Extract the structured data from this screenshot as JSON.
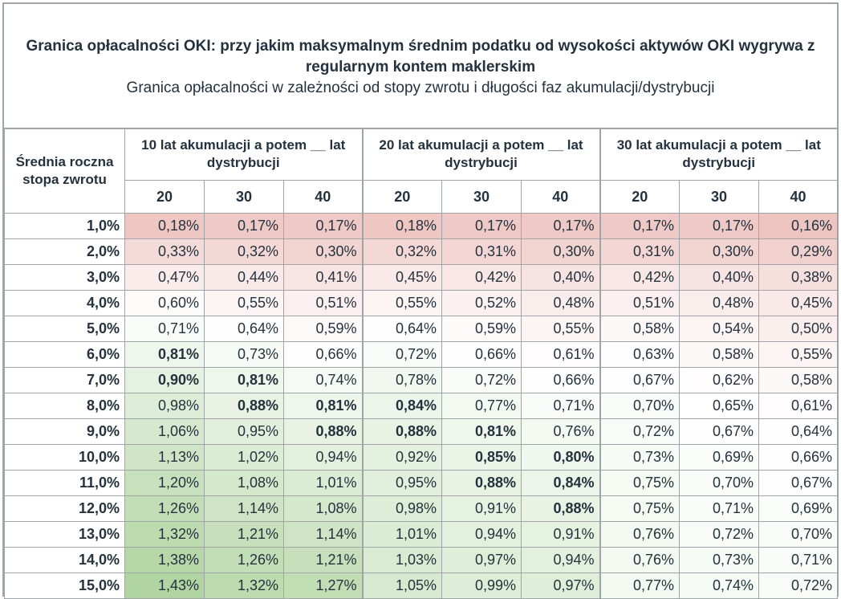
{
  "title": "Granica opłacalności OKI: przy jakim maksymalnym średnim podatku od wysokości aktywów OKI wygrywa z regularnym kontem maklerskim",
  "subtitle": "Granica opłacalności w zależności od stopy zwrotu i długości faz akumulacji/dystrybucji",
  "header": {
    "rate_label": "Średnia roczna stopa zwrotu",
    "groups": [
      "10 lat akumulacji a potem __ lat dystrybucji",
      "20 lat akumulacji a potem __ lat dystrybucji",
      "30 lat akumulacji a potem __ lat dystrybucji"
    ],
    "sub": [
      "20",
      "30",
      "40",
      "20",
      "30",
      "40",
      "20",
      "30",
      "40"
    ]
  },
  "rows": [
    {
      "rate": "1,0%",
      "cells": [
        "0,18%",
        "0,17%",
        "0,17%",
        "0,18%",
        "0,17%",
        "0,17%",
        "0,17%",
        "0,17%",
        "0,16%"
      ],
      "colors": [
        "#eec7c3",
        "#efc9c5",
        "#efc9c5",
        "#eec7c3",
        "#efc9c5",
        "#efc9c5",
        "#efc9c5",
        "#efc9c5",
        "#edc4c0"
      ],
      "bold": []
    },
    {
      "rate": "2,0%",
      "cells": [
        "0,33%",
        "0,32%",
        "0,30%",
        "0,32%",
        "0,31%",
        "0,30%",
        "0,31%",
        "0,30%",
        "0,29%"
      ],
      "colors": [
        "#f4dad8",
        "#f3d8d5",
        "#f2d4d1",
        "#f3d8d5",
        "#f3d6d3",
        "#f2d4d1",
        "#f3d6d3",
        "#f2d4d1",
        "#f1d1ce"
      ],
      "bold": []
    },
    {
      "rate": "3,0%",
      "cells": [
        "0,47%",
        "0,44%",
        "0,41%",
        "0,45%",
        "0,42%",
        "0,40%",
        "0,42%",
        "0,40%",
        "0,38%"
      ],
      "colors": [
        "#faeceb",
        "#f9e9e8",
        "#f8e5e3",
        "#f9eae9",
        "#f8e7e5",
        "#f7e3e2",
        "#f8e7e5",
        "#f7e3e2",
        "#f6e0de"
      ],
      "bold": []
    },
    {
      "rate": "4,0%",
      "cells": [
        "0,60%",
        "0,55%",
        "0,51%",
        "0,55%",
        "0,52%",
        "0,48%",
        "0,51%",
        "0,48%",
        "0,45%"
      ],
      "colors": [
        "#fefbfb",
        "#fcf5f4",
        "#fbf0ef",
        "#fcf5f4",
        "#fbf1f0",
        "#faeeed",
        "#fbf0ef",
        "#faeeed",
        "#f9eae9"
      ],
      "bold": []
    },
    {
      "rate": "5,0%",
      "cells": [
        "0,71%",
        "0,64%",
        "0,59%",
        "0,64%",
        "0,59%",
        "0,55%",
        "0,58%",
        "0,54%",
        "0,50%"
      ],
      "colors": [
        "#f9fcf8",
        "#fefefe",
        "#fefafa",
        "#fefefe",
        "#fefafa",
        "#fcf5f4",
        "#fdf8f8",
        "#fcf3f3",
        "#fbefee"
      ],
      "bold": []
    },
    {
      "rate": "6,0%",
      "cells": [
        "0,81%",
        "0,73%",
        "0,66%",
        "0,72%",
        "0,66%",
        "0,61%",
        "0,63%",
        "0,58%",
        "0,55%"
      ],
      "colors": [
        "#eff7ec",
        "#f7fbf6",
        "#fdfefd",
        "#f8fbf7",
        "#fdfefd",
        "#fefcfc",
        "#fffefe",
        "#fdf8f8",
        "#fcf5f4"
      ],
      "bold": [
        0
      ]
    },
    {
      "rate": "7,0%",
      "cells": [
        "0,90%",
        "0,81%",
        "0,74%",
        "0,78%",
        "0,72%",
        "0,66%",
        "0,67%",
        "0,62%",
        "0,58%"
      ],
      "colors": [
        "#e6f2e1",
        "#eff7ec",
        "#f6faf5",
        "#f2f8f0",
        "#f8fbf7",
        "#fdfefd",
        "#fcfdfc",
        "#fffdfd",
        "#fdf8f8"
      ],
      "bold": [
        0,
        1
      ]
    },
    {
      "rate": "8,0%",
      "cells": [
        "0,98%",
        "0,88%",
        "0,81%",
        "0,84%",
        "0,77%",
        "0,71%",
        "0,70%",
        "0,65%",
        "0,61%"
      ],
      "colors": [
        "#deedd8",
        "#e8f3e4",
        "#eff7ec",
        "#ecf5e9",
        "#f3f9f1",
        "#f9fcf8",
        "#fafcf9",
        "#fefffe",
        "#fefcfc"
      ],
      "bold": [
        1,
        2,
        3
      ]
    },
    {
      "rate": "9,0%",
      "cells": [
        "1,06%",
        "0,95%",
        "0,88%",
        "0,88%",
        "0,81%",
        "0,76%",
        "0,72%",
        "0,67%",
        "0,64%"
      ],
      "colors": [
        "#d6e9ce",
        "#e1efdc",
        "#e8f3e4",
        "#e8f3e4",
        "#eff7ec",
        "#f4f9f2",
        "#f8fbf7",
        "#fcfdfc",
        "#fefefe"
      ],
      "bold": [
        2,
        3,
        4
      ]
    },
    {
      "rate": "10,0%",
      "cells": [
        "1,13%",
        "1,02%",
        "0,94%",
        "0,92%",
        "0,85%",
        "0,80%",
        "0,73%",
        "0,69%",
        "0,66%"
      ],
      "colors": [
        "#cfe5c6",
        "#dbecd4",
        "#e2f0dd",
        "#e4f1df",
        "#ebf5e7",
        "#f0f7ee",
        "#f7fbf6",
        "#fbfdfa",
        "#fdfefd"
      ],
      "bold": [
        4,
        5
      ]
    },
    {
      "rate": "11,0%",
      "cells": [
        "1,20%",
        "1,08%",
        "1,01%",
        "0,95%",
        "0,88%",
        "0,84%",
        "0,75%",
        "0,70%",
        "0,67%"
      ],
      "colors": [
        "#c8e1bd",
        "#d4e8cb",
        "#dbecd4",
        "#e1efdc",
        "#e8f3e4",
        "#ecf5e9",
        "#f5faf3",
        "#fafcf9",
        "#fcfdfc"
      ],
      "bold": [
        4,
        5
      ]
    },
    {
      "rate": "12,0%",
      "cells": [
        "1,26%",
        "1,14%",
        "1,08%",
        "0,98%",
        "0,91%",
        "0,88%",
        "0,75%",
        "0,71%",
        "0,69%"
      ],
      "colors": [
        "#c2deb6",
        "#cee4c4",
        "#d4e8cb",
        "#deedd8",
        "#e5f2e0",
        "#e8f3e4",
        "#f5faf3",
        "#f9fcf8",
        "#fbfdfa"
      ],
      "bold": [
        5
      ]
    },
    {
      "rate": "13,0%",
      "cells": [
        "1,32%",
        "1,21%",
        "1,14%",
        "1,01%",
        "0,94%",
        "0,91%",
        "0,76%",
        "0,72%",
        "0,70%"
      ],
      "colors": [
        "#bcdbaf",
        "#c7e0bb",
        "#cee4c4",
        "#dbecd4",
        "#e2f0dd",
        "#e5f2e0",
        "#f4f9f2",
        "#f8fbf7",
        "#fafcf9"
      ],
      "bold": []
    },
    {
      "rate": "14,0%",
      "cells": [
        "1,38%",
        "1,26%",
        "1,21%",
        "1,03%",
        "0,97%",
        "0,94%",
        "0,76%",
        "0,73%",
        "0,71%"
      ],
      "colors": [
        "#b6d7a8",
        "#c2deb6",
        "#c7e0bb",
        "#d9ebd2",
        "#dfeed9",
        "#e2f0dd",
        "#f4f9f2",
        "#f7fbf6",
        "#f9fcf8"
      ],
      "bold": []
    },
    {
      "rate": "15,0%",
      "cells": [
        "1,43%",
        "1,32%",
        "1,27%",
        "1,05%",
        "0,99%",
        "0,97%",
        "0,77%",
        "0,74%",
        "0,72%"
      ],
      "colors": [
        "#b1d5a2",
        "#bcdbaf",
        "#c1ddb4",
        "#d7eacf",
        "#ddedd7",
        "#dfeed9",
        "#f3f9f1",
        "#f6faf5",
        "#f8fbf7"
      ],
      "bold": []
    }
  ]
}
